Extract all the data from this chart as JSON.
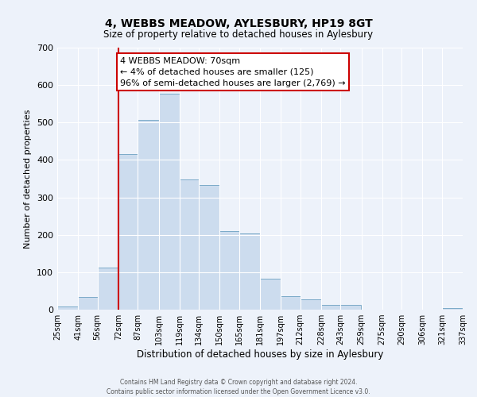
{
  "title": "4, WEBBS MEADOW, AYLESBURY, HP19 8GT",
  "subtitle": "Size of property relative to detached houses in Aylesbury",
  "xlabel": "Distribution of detached houses by size in Aylesbury",
  "ylabel": "Number of detached properties",
  "bin_edges": [
    25,
    41,
    56,
    72,
    87,
    103,
    119,
    134,
    150,
    165,
    181,
    197,
    212,
    228,
    243,
    259,
    275,
    290,
    306,
    321,
    337
  ],
  "bar_heights": [
    8,
    35,
    113,
    415,
    508,
    578,
    348,
    333,
    210,
    203,
    83,
    37,
    27,
    13,
    13,
    0,
    0,
    0,
    0,
    5
  ],
  "bar_color": "#ccdcee",
  "bar_edgecolor": "#7aaac8",
  "vline_x": 72,
  "vline_color": "#cc0000",
  "ylim": [
    0,
    700
  ],
  "yticks": [
    0,
    100,
    200,
    300,
    400,
    500,
    600,
    700
  ],
  "annotation_title": "4 WEBBS MEADOW: 70sqm",
  "annotation_line1": "← 4% of detached houses are smaller (125)",
  "annotation_line2": "96% of semi-detached houses are larger (2,769) →",
  "annotation_box_facecolor": "#ffffff",
  "annotation_box_edgecolor": "#cc0000",
  "bg_color": "#edf2fa",
  "grid_color": "#ffffff",
  "footer_line1": "Contains HM Land Registry data © Crown copyright and database right 2024.",
  "footer_line2": "Contains public sector information licensed under the Open Government Licence v3.0."
}
